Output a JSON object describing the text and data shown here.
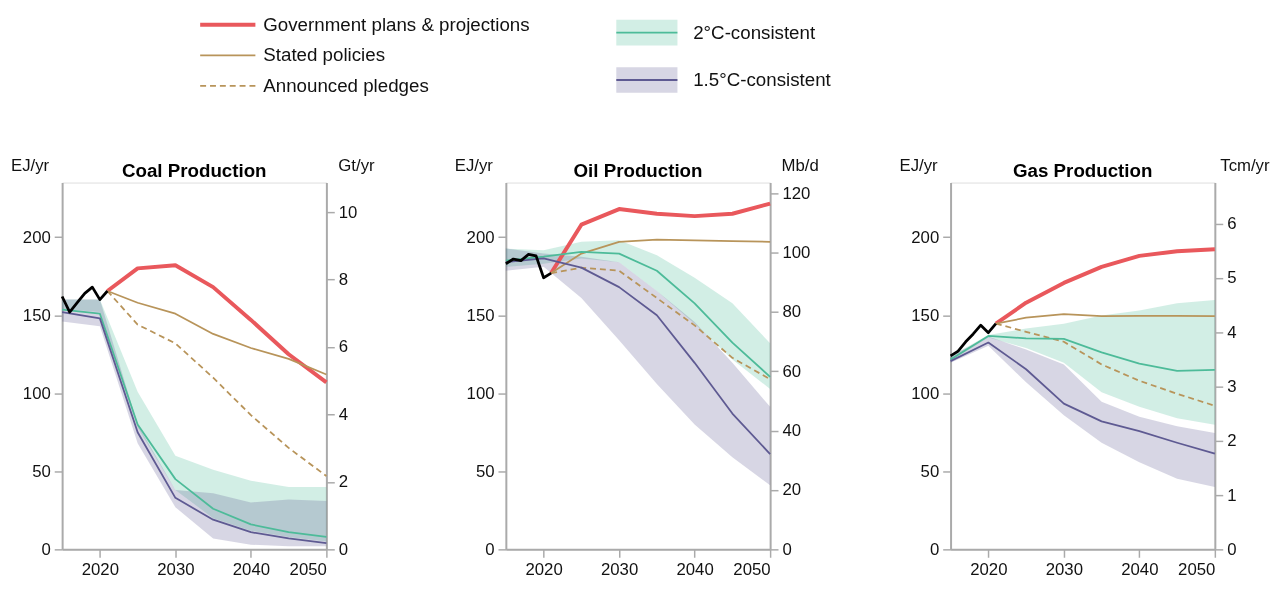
{
  "chart_data": [
    {
      "type": "line",
      "title": "Coal Production",
      "ylabel": "EJ/yr",
      "y2label": "Gt/yr",
      "legend": "top",
      "grid": false,
      "xlim": [
        2015,
        2050
      ],
      "xticks": [
        2020,
        2030,
        2040,
        2050
      ],
      "ylim": [
        0,
        235
      ],
      "yticks": [
        0,
        50,
        100,
        150,
        200
      ],
      "y2lim": [
        0,
        10.88
      ],
      "y2ticks": [
        0,
        2,
        4,
        6,
        8,
        10
      ],
      "series": [
        {
          "color": "#000000",
          "x": [
            2015,
            2016,
            2017,
            2018,
            2019,
            2020,
            2021
          ],
          "values": [
            162,
            152,
            158,
            164,
            168,
            160,
            165.5
          ]
        },
        {
          "name": "Government plans & projections",
          "color": "#e9585c",
          "x": [
            2021,
            2025,
            2030,
            2035,
            2040,
            2045,
            2050
          ],
          "values": [
            165.5,
            180,
            182,
            168,
            147,
            125,
            107
          ]
        },
        {
          "name": "Stated policies",
          "color": "#b8945a",
          "x": [
            2021,
            2025,
            2030,
            2035,
            2040,
            2045,
            2050
          ],
          "values": [
            165.5,
            158,
            151,
            138,
            129,
            122,
            112
          ]
        },
        {
          "name": "Announced pledges",
          "color": "#b8945a",
          "line_style": "dashed",
          "x": [
            2021,
            2025,
            2030,
            2035,
            2040,
            2045,
            2050
          ],
          "values": [
            165.5,
            144,
            132,
            110,
            86,
            65,
            47
          ]
        },
        {
          "name": "2°C-consistent",
          "color": "#4dbb99",
          "x": [
            2015,
            2020,
            2025,
            2030,
            2035,
            2040,
            2045,
            2050
          ],
          "values": [
            153.6,
            151,
            80,
            45,
            26,
            16,
            11,
            8
          ],
          "lower": [
            154,
            152,
            78,
            38,
            20,
            12,
            8,
            5
          ],
          "upper": [
            160,
            160,
            101,
            60,
            51,
            44,
            40,
            40
          ]
        },
        {
          "name": "1.5°C-consistent",
          "color": "#5e5a92",
          "x": [
            2015,
            2020,
            2025,
            2030,
            2035,
            2040,
            2045,
            2050
          ],
          "values": [
            152,
            148,
            75,
            33,
            19,
            11,
            7,
            4
          ],
          "lower": [
            146,
            143,
            68,
            27,
            7,
            3,
            2,
            2
          ],
          "upper": [
            160,
            160,
            80,
            38,
            36,
            30,
            32,
            31
          ]
        }
      ]
    },
    {
      "type": "line",
      "title": "Oil Production",
      "ylabel": "EJ/yr",
      "y2label": "Mb/d",
      "grid": false,
      "xlim": [
        2015,
        2050
      ],
      "xticks": [
        2020,
        2030,
        2040,
        2050
      ],
      "ylim": [
        0,
        235
      ],
      "yticks": [
        0,
        50,
        100,
        150,
        200
      ],
      "y2lim": [
        0,
        123.6
      ],
      "y2ticks": [
        0,
        20,
        40,
        60,
        80,
        100,
        120
      ],
      "series": [
        {
          "color": "#000000",
          "x": [
            2015,
            2016,
            2017,
            2018,
            2019,
            2020,
            2021
          ],
          "values": [
            183,
            186,
            185,
            189,
            188,
            174,
            177
          ]
        },
        {
          "color": "#e9585c",
          "x": [
            2021,
            2025,
            2030,
            2035,
            2040,
            2045,
            2050
          ],
          "values": [
            177,
            208,
            218,
            215,
            213.5,
            215,
            221.5
          ]
        },
        {
          "color": "#b8945a",
          "x": [
            2021,
            2025,
            2030,
            2035,
            2040,
            2045,
            2050
          ],
          "values": [
            177,
            189.5,
            197,
            198.5,
            198,
            197.5,
            197
          ]
        },
        {
          "color": "#b8945a",
          "line_style": "dashed",
          "x": [
            2021,
            2025,
            2030,
            2035,
            2040,
            2045,
            2050
          ],
          "values": [
            177,
            180.5,
            178.5,
            161,
            143.5,
            122.7,
            109
          ]
        },
        {
          "color": "#4dbb99",
          "x": [
            2015,
            2020,
            2025,
            2030,
            2035,
            2040,
            2045,
            2050
          ],
          "values": [
            185,
            187.5,
            190.6,
            189.5,
            178.5,
            157.6,
            132.5,
            110.5
          ],
          "lower": [
            181,
            183,
            186.4,
            184,
            165.5,
            144.6,
            121.6,
            102.8
          ],
          "upper": [
            192.7,
            191.6,
            197,
            198,
            188.5,
            174,
            157.6,
            132
          ]
        },
        {
          "color": "#5e5a92",
          "x": [
            2015,
            2020,
            2025,
            2030,
            2035,
            2040,
            2045,
            2050
          ],
          "values": [
            184,
            186.4,
            180.5,
            168,
            150,
            119.5,
            87,
            61
          ],
          "lower": [
            178.5,
            181,
            161,
            134,
            106,
            80,
            59,
            41
          ],
          "upper": [
            192.7,
            189.5,
            187.5,
            184,
            165.5,
            145.7,
            119.5,
            91.3
          ]
        }
      ]
    },
    {
      "type": "line",
      "title": "Gas Production",
      "ylabel": "EJ/yr",
      "y2label": "Tcm/yr",
      "grid": false,
      "xlim": [
        2015,
        2050
      ],
      "xticks": [
        2020,
        2030,
        2040,
        2050
      ],
      "ylim": [
        0,
        235
      ],
      "yticks": [
        0,
        50,
        100,
        150,
        200
      ],
      "y2lim": [
        0,
        6.76
      ],
      "y2ticks": [
        0,
        1,
        2,
        3,
        4,
        5,
        6
      ],
      "series": [
        {
          "color": "#000000",
          "x": [
            2015,
            2016,
            2017,
            2018,
            2019,
            2020,
            2021
          ],
          "values": [
            124,
            127,
            133,
            138,
            143.6,
            138.8,
            144.6
          ]
        },
        {
          "color": "#e9585c",
          "x": [
            2021,
            2025,
            2030,
            2035,
            2040,
            2045,
            2050
          ],
          "values": [
            144.6,
            158,
            170.7,
            181,
            188,
            191,
            192.3
          ]
        },
        {
          "color": "#b8945a",
          "x": [
            2021,
            2025,
            2030,
            2035,
            2040,
            2045,
            2050
          ],
          "values": [
            144.6,
            148.4,
            150.7,
            149.4,
            149.6,
            149.6,
            149.4
          ]
        },
        {
          "color": "#b8945a",
          "line_style": "dashed",
          "x": [
            2021,
            2025,
            2030,
            2035,
            2040,
            2045,
            2050
          ],
          "values": [
            144.6,
            139.4,
            133,
            118.5,
            108,
            99.7,
            92
          ]
        },
        {
          "color": "#4dbb99",
          "x": [
            2015,
            2020,
            2025,
            2030,
            2035,
            2040,
            2045,
            2050
          ],
          "values": [
            121.6,
            136.7,
            135.2,
            134.8,
            126.2,
            119,
            114.3,
            115
          ],
          "lower": [
            120.6,
            135.8,
            129,
            119.5,
            100.7,
            91.3,
            84,
            79.8
          ],
          "upper": [
            123.7,
            137.3,
            141.5,
            144.6,
            149.8,
            153,
            157.6,
            159.7
          ]
        },
        {
          "color": "#5e5a92",
          "x": [
            2015,
            2020,
            2025,
            2030,
            2035,
            2040,
            2045,
            2050
          ],
          "values": [
            120.6,
            132.5,
            115.4,
            93.4,
            82,
            75.7,
            68.3,
            61.4
          ],
          "lower": [
            119.5,
            130.4,
            107,
            86,
            68.3,
            55.8,
            45.3,
            40
          ],
          "upper": [
            123.7,
            136.3,
            128,
            118.5,
            94.5,
            85,
            78.8,
            74.6
          ]
        }
      ]
    }
  ]
}
